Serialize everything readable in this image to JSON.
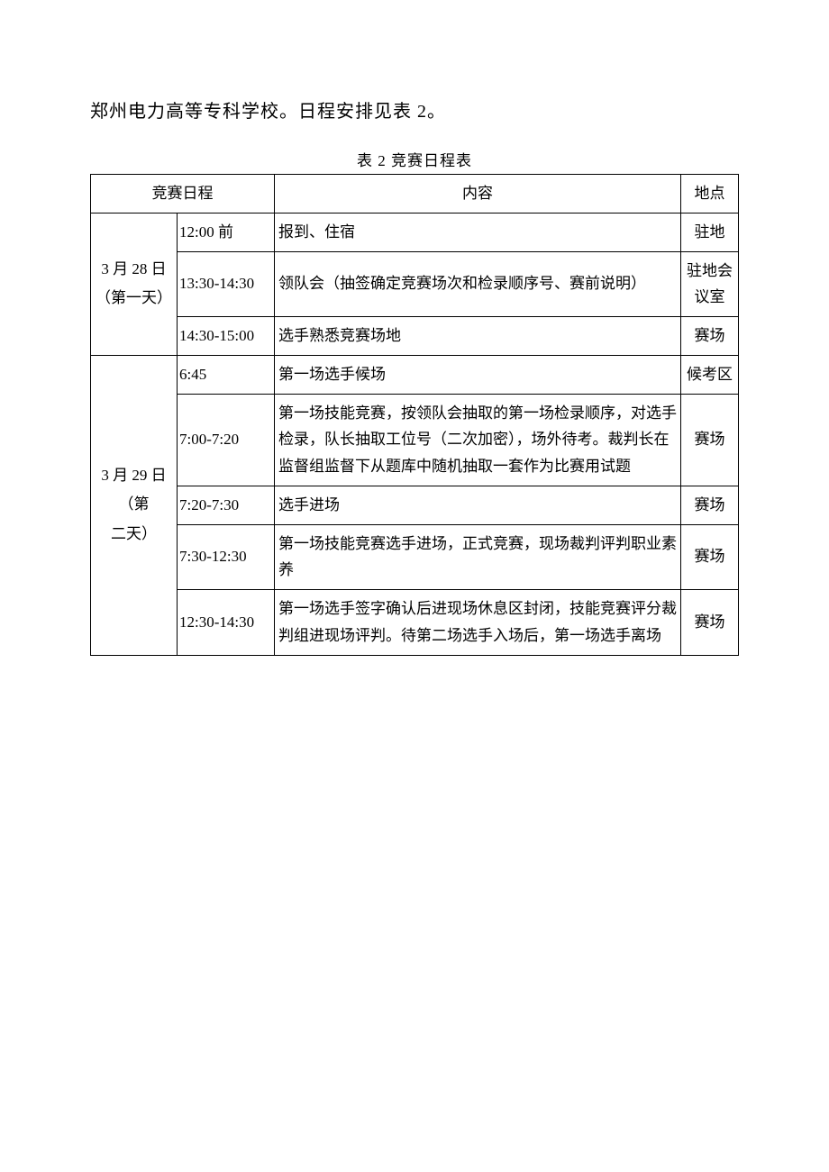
{
  "intro": "郑州电力高等专科学校。日程安排见表 2。",
  "caption": "表 2 竞赛日程表",
  "headers": {
    "schedule": "竞赛日程",
    "content": "内容",
    "location": "地点"
  },
  "day1": {
    "label_line1": "3 月 28 日",
    "label_line2": "（第一天）",
    "rows": [
      {
        "time": "12:00 前",
        "content": "报到、住宿",
        "loc": "驻地"
      },
      {
        "time": "13:30-14:30",
        "content": "领队会（抽签确定竞赛场次和检录顺序号、赛前说明）",
        "loc": "驻地会议室"
      },
      {
        "time": "14:30-15:00",
        "content": "选手熟悉竞赛场地",
        "loc": "赛场"
      }
    ]
  },
  "day2": {
    "label_line1": "3 月 29 日（第",
    "label_line2": "二天）",
    "rows": [
      {
        "time": "6:45",
        "content": "第一场选手候场",
        "loc": "候考区"
      },
      {
        "time": "7:00-7:20",
        "content": "第一场技能竞赛，按领队会抽取的第一场检录顺序，对选手检录，队长抽取工位号（二次加密），场外待考。裁判长在监督组监督下从题库中随机抽取一套作为比赛用试题",
        "loc": "赛场"
      },
      {
        "time": "7:20-7:30",
        "content": "选手进场",
        "loc": "赛场"
      },
      {
        "time": "7:30-12:30",
        "content": "第一场技能竞赛选手进场，正式竞赛，现场裁判评判职业素养",
        "loc": "赛场"
      },
      {
        "time": "12:30-14:30",
        "content": "第一场选手签字确认后进现场休息区封闭，技能竞赛评分裁判组进现场评判。待第二场选手入场后，第一场选手离场",
        "loc": "赛场"
      }
    ]
  },
  "colors": {
    "text": "#000000",
    "border": "#000000",
    "background": "#ffffff"
  },
  "typography": {
    "intro_fontsize": 20,
    "caption_fontsize": 17,
    "table_fontsize": 17
  }
}
